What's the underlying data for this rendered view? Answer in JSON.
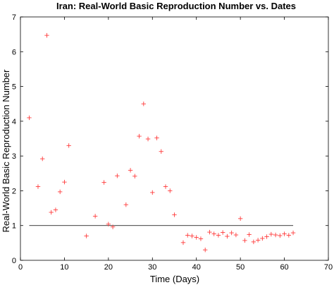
{
  "chart_data": {
    "type": "scatter",
    "title": "Iran: Real-World Basic Reproduction Number vs. Dates",
    "xlabel": "Time (Days)",
    "ylabel": "Real-World Basic Reproduction Number",
    "xlim": [
      0,
      70
    ],
    "ylim": [
      0,
      7
    ],
    "xticks": [
      0,
      10,
      20,
      30,
      40,
      50,
      60,
      70
    ],
    "yticks": [
      0,
      1,
      2,
      3,
      4,
      5,
      6,
      7
    ],
    "grid": false,
    "marker": "+",
    "marker_color": "#ff3b3b",
    "reference_line": {
      "y": 1,
      "x_start": 2,
      "x_end": 62,
      "color": "#000000"
    },
    "series": [
      {
        "points": [
          [
            2,
            4.1
          ],
          [
            4,
            2.12
          ],
          [
            5,
            2.92
          ],
          [
            6,
            6.47
          ],
          [
            7,
            1.38
          ],
          [
            8,
            1.45
          ],
          [
            9,
            1.97
          ],
          [
            10,
            2.25
          ],
          [
            11,
            3.3
          ],
          [
            15,
            0.7
          ],
          [
            17,
            1.27
          ],
          [
            19,
            2.24
          ],
          [
            20,
            1.04
          ],
          [
            21,
            0.96
          ],
          [
            22,
            2.43
          ],
          [
            24,
            1.6
          ],
          [
            25,
            2.59
          ],
          [
            26,
            2.42
          ],
          [
            27,
            3.57
          ],
          [
            28,
            4.5
          ],
          [
            29,
            3.49
          ],
          [
            30,
            1.95
          ],
          [
            31,
            3.52
          ],
          [
            32,
            3.13
          ],
          [
            33,
            2.12
          ],
          [
            34,
            2.0
          ],
          [
            35,
            1.31
          ],
          [
            37,
            0.51
          ],
          [
            38,
            0.72
          ],
          [
            39,
            0.7
          ],
          [
            40,
            0.66
          ],
          [
            41,
            0.62
          ],
          [
            42,
            0.3
          ],
          [
            43,
            0.81
          ],
          [
            44,
            0.76
          ],
          [
            45,
            0.72
          ],
          [
            46,
            0.8
          ],
          [
            47,
            0.69
          ],
          [
            48,
            0.79
          ],
          [
            49,
            0.73
          ],
          [
            50,
            1.2
          ],
          [
            51,
            0.57
          ],
          [
            52,
            0.74
          ],
          [
            53,
            0.53
          ],
          [
            54,
            0.58
          ],
          [
            55,
            0.63
          ],
          [
            56,
            0.68
          ],
          [
            57,
            0.75
          ],
          [
            58,
            0.73
          ],
          [
            59,
            0.71
          ],
          [
            60,
            0.76
          ],
          [
            61,
            0.72
          ],
          [
            62,
            0.79
          ]
        ]
      }
    ]
  }
}
